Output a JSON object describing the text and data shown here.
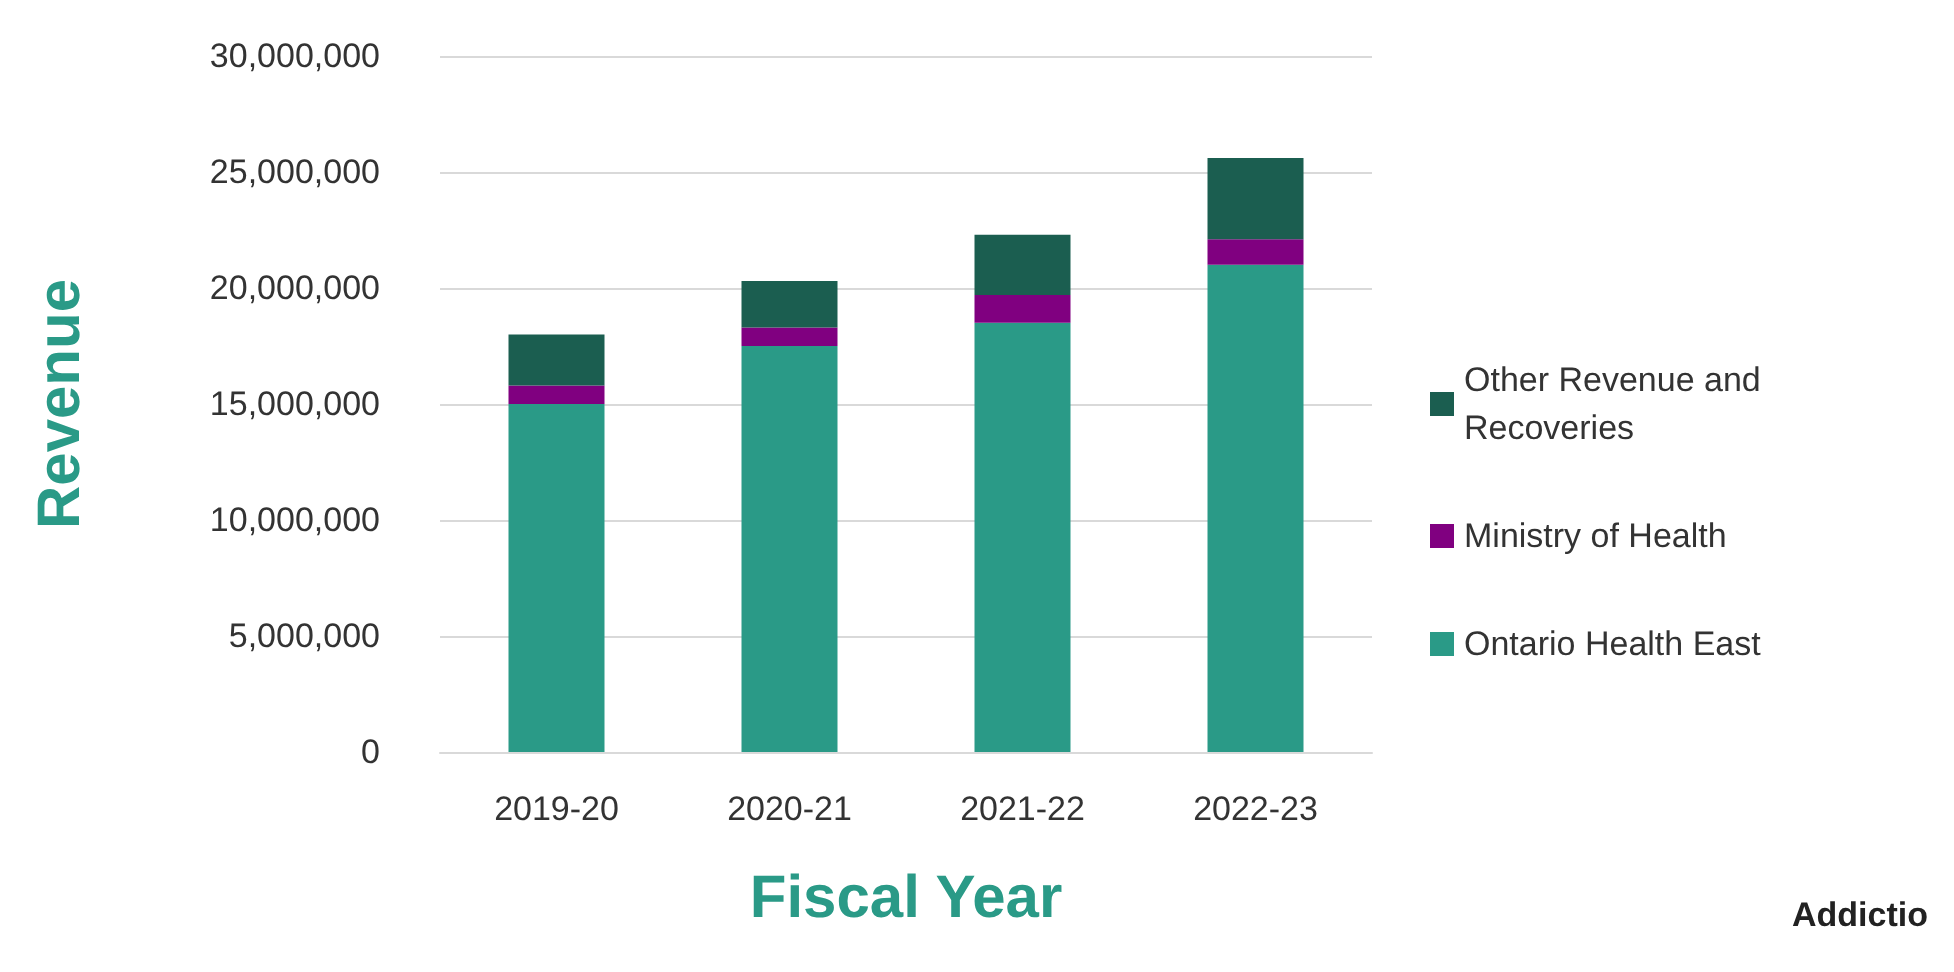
{
  "chart_data": {
    "type": "bar",
    "stacked": true,
    "xlabel": "Fiscal Year",
    "ylabel": "Revenue",
    "categories": [
      "2019-20",
      "2020-21",
      "2021-22",
      "2022-23"
    ],
    "series": [
      {
        "name": "Ontario Health East",
        "color": "#2a9a87",
        "values": [
          15000000,
          17500000,
          18500000,
          21000000
        ]
      },
      {
        "name": "Ministry of Health",
        "color": "#800080",
        "values": [
          800000,
          800000,
          1200000,
          1100000
        ]
      },
      {
        "name": "Other Revenue and Recoveries",
        "color": "#1b5e50",
        "values": [
          2200000,
          2000000,
          2600000,
          3500000
        ]
      }
    ],
    "ylim": [
      0,
      30000000
    ],
    "yticks": [
      0,
      {
        "value": 5000000,
        "label": "5,000,000"
      },
      {
        "value": 10000000,
        "label": "10,000,000"
      },
      {
        "value": 15000000,
        "label": "15,000,000"
      },
      {
        "value": 20000000,
        "label": "20,000,000"
      },
      {
        "value": 25000000,
        "label": "25,000,000"
      },
      {
        "value": 30000000,
        "label": "30,000,000"
      }
    ],
    "grid": "y",
    "legend": "right",
    "annotations": [
      "Addictio"
    ]
  }
}
